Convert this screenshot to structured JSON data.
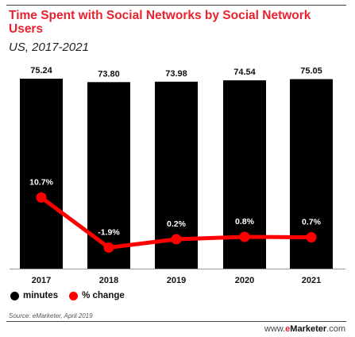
{
  "title": "Time Spent with Social Networks by Social Network Users",
  "subtitle": "US, 2017-2021",
  "source": "Source: eMarketer, April 2019",
  "brand": {
    "prefix": "www.",
    "e": "e",
    "name": "Marketer",
    "suffix": ".com"
  },
  "colors": {
    "bars": "#000000",
    "line": "#ff0000",
    "title": "#e8232f"
  },
  "legend": [
    {
      "label": "minutes",
      "color": "#000000"
    },
    {
      "label": "% change",
      "color": "#ff0000"
    }
  ],
  "chart_data": {
    "type": "bar",
    "categories": [
      "2017",
      "2018",
      "2019",
      "2020",
      "2021"
    ],
    "series": [
      {
        "name": "minutes",
        "type": "bar",
        "values": [
          75.24,
          73.8,
          73.98,
          74.54,
          75.05
        ],
        "labels": [
          "75.24",
          "73.80",
          "73.98",
          "74.54",
          "75.05"
        ]
      },
      {
        "name": "% change",
        "type": "line",
        "values": [
          10.7,
          -1.9,
          0.2,
          0.8,
          0.7
        ],
        "labels": [
          "10.7%",
          "-1.9%",
          "0.2%",
          "0.8%",
          "0.7%"
        ]
      }
    ],
    "legend_position": "bottom-left",
    "grid": false
  }
}
